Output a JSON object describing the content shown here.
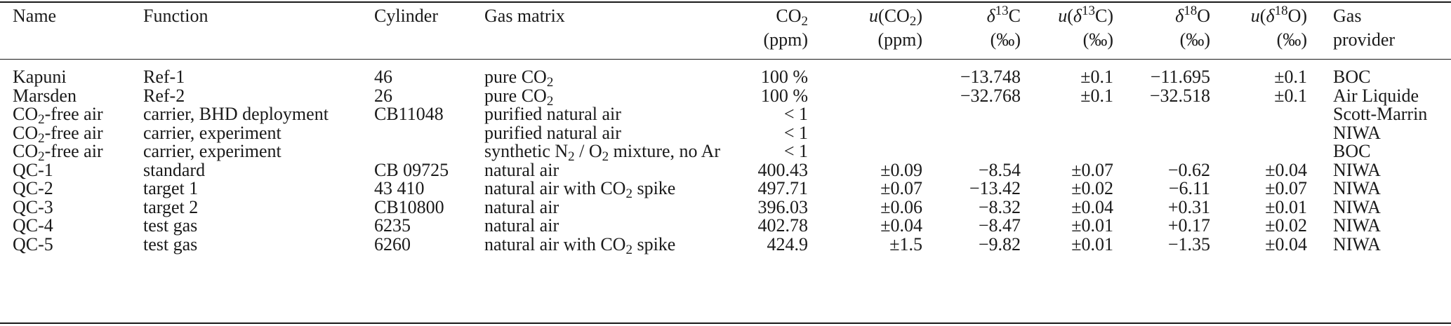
{
  "columns": [
    "Name",
    "Function",
    "Cylinder",
    "Gas matrix",
    "CO2 (ppm)",
    "u(CO2) (ppm)",
    "δ13C (‰)",
    "u(δ13C) (‰)",
    "δ18O (‰)",
    "u(δ18O) (‰)",
    "Gas provider"
  ],
  "header": {
    "name": "Name",
    "function": "Function",
    "cylinder": "Cylinder",
    "gas_matrix": "Gas matrix",
    "co2_unit": "(ppm)",
    "uco2_unit": "(ppm)",
    "permil": "(‰)",
    "provider_line1": "Gas",
    "provider_line2": "provider"
  },
  "rows": [
    {
      "name": "Kapuni",
      "function": "Ref-1",
      "cylinder": "46",
      "matrix": "pure CO2",
      "co2": "100 %",
      "u_co2": "",
      "d13c": "−13.748",
      "u_d13c": "±0.1",
      "d18o": "−11.695",
      "u_d18o": "±0.1",
      "provider": "BOC"
    },
    {
      "name": "Marsden",
      "function": "Ref-2",
      "cylinder": "26",
      "matrix": "pure CO2",
      "co2": "100 %",
      "u_co2": "",
      "d13c": "−32.768",
      "u_d13c": "±0.1",
      "d18o": "−32.518",
      "u_d18o": "±0.1",
      "provider": "Air Liquide"
    },
    {
      "name": "CO2-free air",
      "function": "carrier, BHD deployment",
      "cylinder": "CB11048",
      "matrix": "purified natural air",
      "co2": "< 1",
      "u_co2": "",
      "d13c": "",
      "u_d13c": "",
      "d18o": "",
      "u_d18o": "",
      "provider": "Scott-Marrin"
    },
    {
      "name": "CO2-free air",
      "function": "carrier, experiment",
      "cylinder": "",
      "matrix": "purified natural air",
      "co2": "< 1",
      "u_co2": "",
      "d13c": "",
      "u_d13c": "",
      "d18o": "",
      "u_d18o": "",
      "provider": "NIWA"
    },
    {
      "name": "CO2-free air",
      "function": "carrier, experiment",
      "cylinder": "",
      "matrix": "synthetic N2 / O2 mixture, no Ar",
      "co2": "< 1",
      "u_co2": "",
      "d13c": "",
      "u_d13c": "",
      "d18o": "",
      "u_d18o": "",
      "provider": "BOC"
    },
    {
      "name": "QC-1",
      "function": "standard",
      "cylinder": "CB 09725",
      "matrix": "natural air",
      "co2": "400.43",
      "u_co2": "±0.09",
      "d13c": "−8.54",
      "u_d13c": "±0.07",
      "d18o": "−0.62",
      "u_d18o": "±0.04",
      "provider": "NIWA"
    },
    {
      "name": "QC-2",
      "function": "target 1",
      "cylinder": "43 410",
      "matrix": "natural air with CO2 spike",
      "co2": "497.71",
      "u_co2": "±0.07",
      "d13c": "−13.42",
      "u_d13c": "±0.02",
      "d18o": "−6.11",
      "u_d18o": "±0.07",
      "provider": "NIWA"
    },
    {
      "name": "QC-3",
      "function": "target 2",
      "cylinder": "CB10800",
      "matrix": "natural air",
      "co2": "396.03",
      "u_co2": "±0.06",
      "d13c": "−8.32",
      "u_d13c": "±0.04",
      "d18o": "+0.31",
      "u_d18o": "±0.01",
      "provider": "NIWA"
    },
    {
      "name": "QC-4",
      "function": "test gas",
      "cylinder": "6235",
      "matrix": "natural air",
      "co2": "402.78",
      "u_co2": "±0.04",
      "d13c": "−8.47",
      "u_d13c": "±0.01",
      "d18o": "+0.17",
      "u_d18o": "±0.02",
      "provider": "NIWA"
    },
    {
      "name": "QC-5",
      "function": "test gas",
      "cylinder": "6260",
      "matrix": "natural air with CO2 spike",
      "co2": "424.9",
      "u_co2": "±1.5",
      "d13c": "−9.82",
      "u_d13c": "±0.01",
      "d18o": "−1.35",
      "u_d18o": "±0.04",
      "provider": "NIWA"
    }
  ]
}
